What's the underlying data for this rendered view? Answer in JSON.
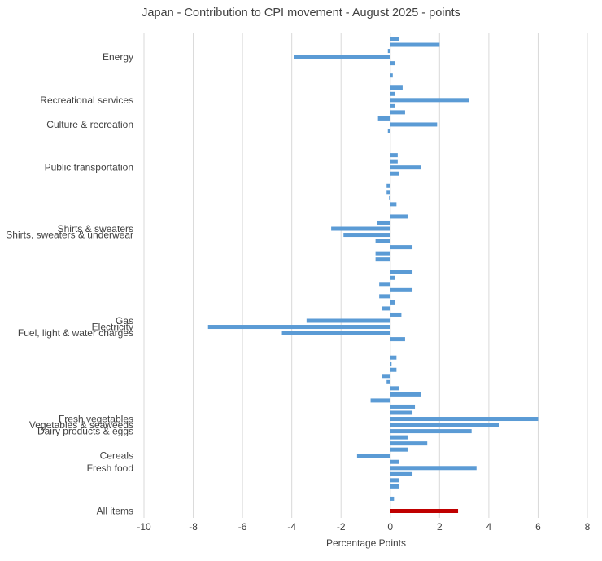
{
  "chart_data": {
    "type": "bar",
    "orientation": "horizontal",
    "title": "Japan - Contribution to CPI movement - August 2025 - points",
    "xlabel": "Percentage Points",
    "ylabel": "",
    "xlim": [
      -10,
      8
    ],
    "xticks": [
      "-10",
      "-8",
      "-6",
      "-4",
      "-2",
      "0",
      "2",
      "4",
      "6",
      "8"
    ],
    "grid": "vertical",
    "legend": "none",
    "colors": {
      "default": "#5B9BD5",
      "highlight": "#C00000",
      "grid": "#D9D9D9"
    },
    "rows": [
      {
        "label": "",
        "value": 0.35
      },
      {
        "label": "",
        "value": 2.0
      },
      {
        "label": "",
        "value": -0.1
      },
      {
        "label": "Energy",
        "value": -3.9
      },
      {
        "label": "",
        "value": 0.2
      },
      {
        "label": "",
        "value": null
      },
      {
        "label": "",
        "value": 0.1
      },
      {
        "label": "",
        "value": null
      },
      {
        "label": "",
        "value": 0.5
      },
      {
        "label": "",
        "value": 0.2
      },
      {
        "label": "Recreational services",
        "value": 3.2
      },
      {
        "label": "",
        "value": 0.2
      },
      {
        "label": "",
        "value": 0.6
      },
      {
        "label": "",
        "value": -0.5
      },
      {
        "label": "Culture & recreation",
        "value": 1.9
      },
      {
        "label": "",
        "value": -0.1
      },
      {
        "label": "",
        "value": null
      },
      {
        "label": "",
        "value": null
      },
      {
        "label": "",
        "value": null
      },
      {
        "label": "",
        "value": 0.3
      },
      {
        "label": "",
        "value": 0.3
      },
      {
        "label": "Public transportation",
        "value": 1.25
      },
      {
        "label": "",
        "value": 0.35
      },
      {
        "label": "",
        "value": null
      },
      {
        "label": "",
        "value": -0.15
      },
      {
        "label": "",
        "value": -0.15
      },
      {
        "label": "",
        "value": -0.05
      },
      {
        "label": "",
        "value": 0.25
      },
      {
        "label": "",
        "value": null
      },
      {
        "label": "",
        "value": 0.7
      },
      {
        "label": "",
        "value": -0.55
      },
      {
        "label": "Shirts & sweaters",
        "value": -2.4
      },
      {
        "label": "Shirts, sweaters & underwear",
        "value": -1.9
      },
      {
        "label": "",
        "value": -0.6
      },
      {
        "label": "",
        "value": 0.9
      },
      {
        "label": "",
        "value": -0.6
      },
      {
        "label": "",
        "value": -0.6
      },
      {
        "label": "",
        "value": null
      },
      {
        "label": "",
        "value": 0.9
      },
      {
        "label": "",
        "value": 0.2
      },
      {
        "label": "",
        "value": -0.45
      },
      {
        "label": "",
        "value": 0.9
      },
      {
        "label": "",
        "value": -0.45
      },
      {
        "label": "",
        "value": 0.2
      },
      {
        "label": "",
        "value": -0.35
      },
      {
        "label": "",
        "value": 0.45
      },
      {
        "label": "Gas",
        "value": -3.4
      },
      {
        "label": "Electricity",
        "value": -7.4
      },
      {
        "label": "Fuel, light & water charges",
        "value": -4.4
      },
      {
        "label": "",
        "value": 0.6
      },
      {
        "label": "",
        "value": null
      },
      {
        "label": "",
        "value": null
      },
      {
        "label": "",
        "value": 0.25
      },
      {
        "label": "",
        "value": 0.05
      },
      {
        "label": "",
        "value": 0.25
      },
      {
        "label": "",
        "value": -0.35
      },
      {
        "label": "",
        "value": -0.15
      },
      {
        "label": "",
        "value": 0.35
      },
      {
        "label": "",
        "value": 1.25
      },
      {
        "label": "",
        "value": -0.8
      },
      {
        "label": "",
        "value": 1.0
      },
      {
        "label": "",
        "value": 0.9
      },
      {
        "label": "Fresh vegetables",
        "value": 6.0
      },
      {
        "label": "Vegetables & seaweeds",
        "value": 4.4
      },
      {
        "label": "Dairy products & eggs",
        "value": 3.3
      },
      {
        "label": "",
        "value": 0.7
      },
      {
        "label": "",
        "value": 1.5
      },
      {
        "label": "",
        "value": 0.7
      },
      {
        "label": "Cereals",
        "value": -1.35
      },
      {
        "label": "",
        "value": 0.35
      },
      {
        "label": "Fresh food",
        "value": 3.5
      },
      {
        "label": "",
        "value": 0.9
      },
      {
        "label": "",
        "value": 0.35
      },
      {
        "label": "",
        "value": 0.35
      },
      {
        "label": "",
        "value": null
      },
      {
        "label": "",
        "value": 0.15
      },
      {
        "label": "",
        "value": null
      },
      {
        "label": "All items",
        "value": 2.75,
        "highlight": true
      }
    ]
  }
}
